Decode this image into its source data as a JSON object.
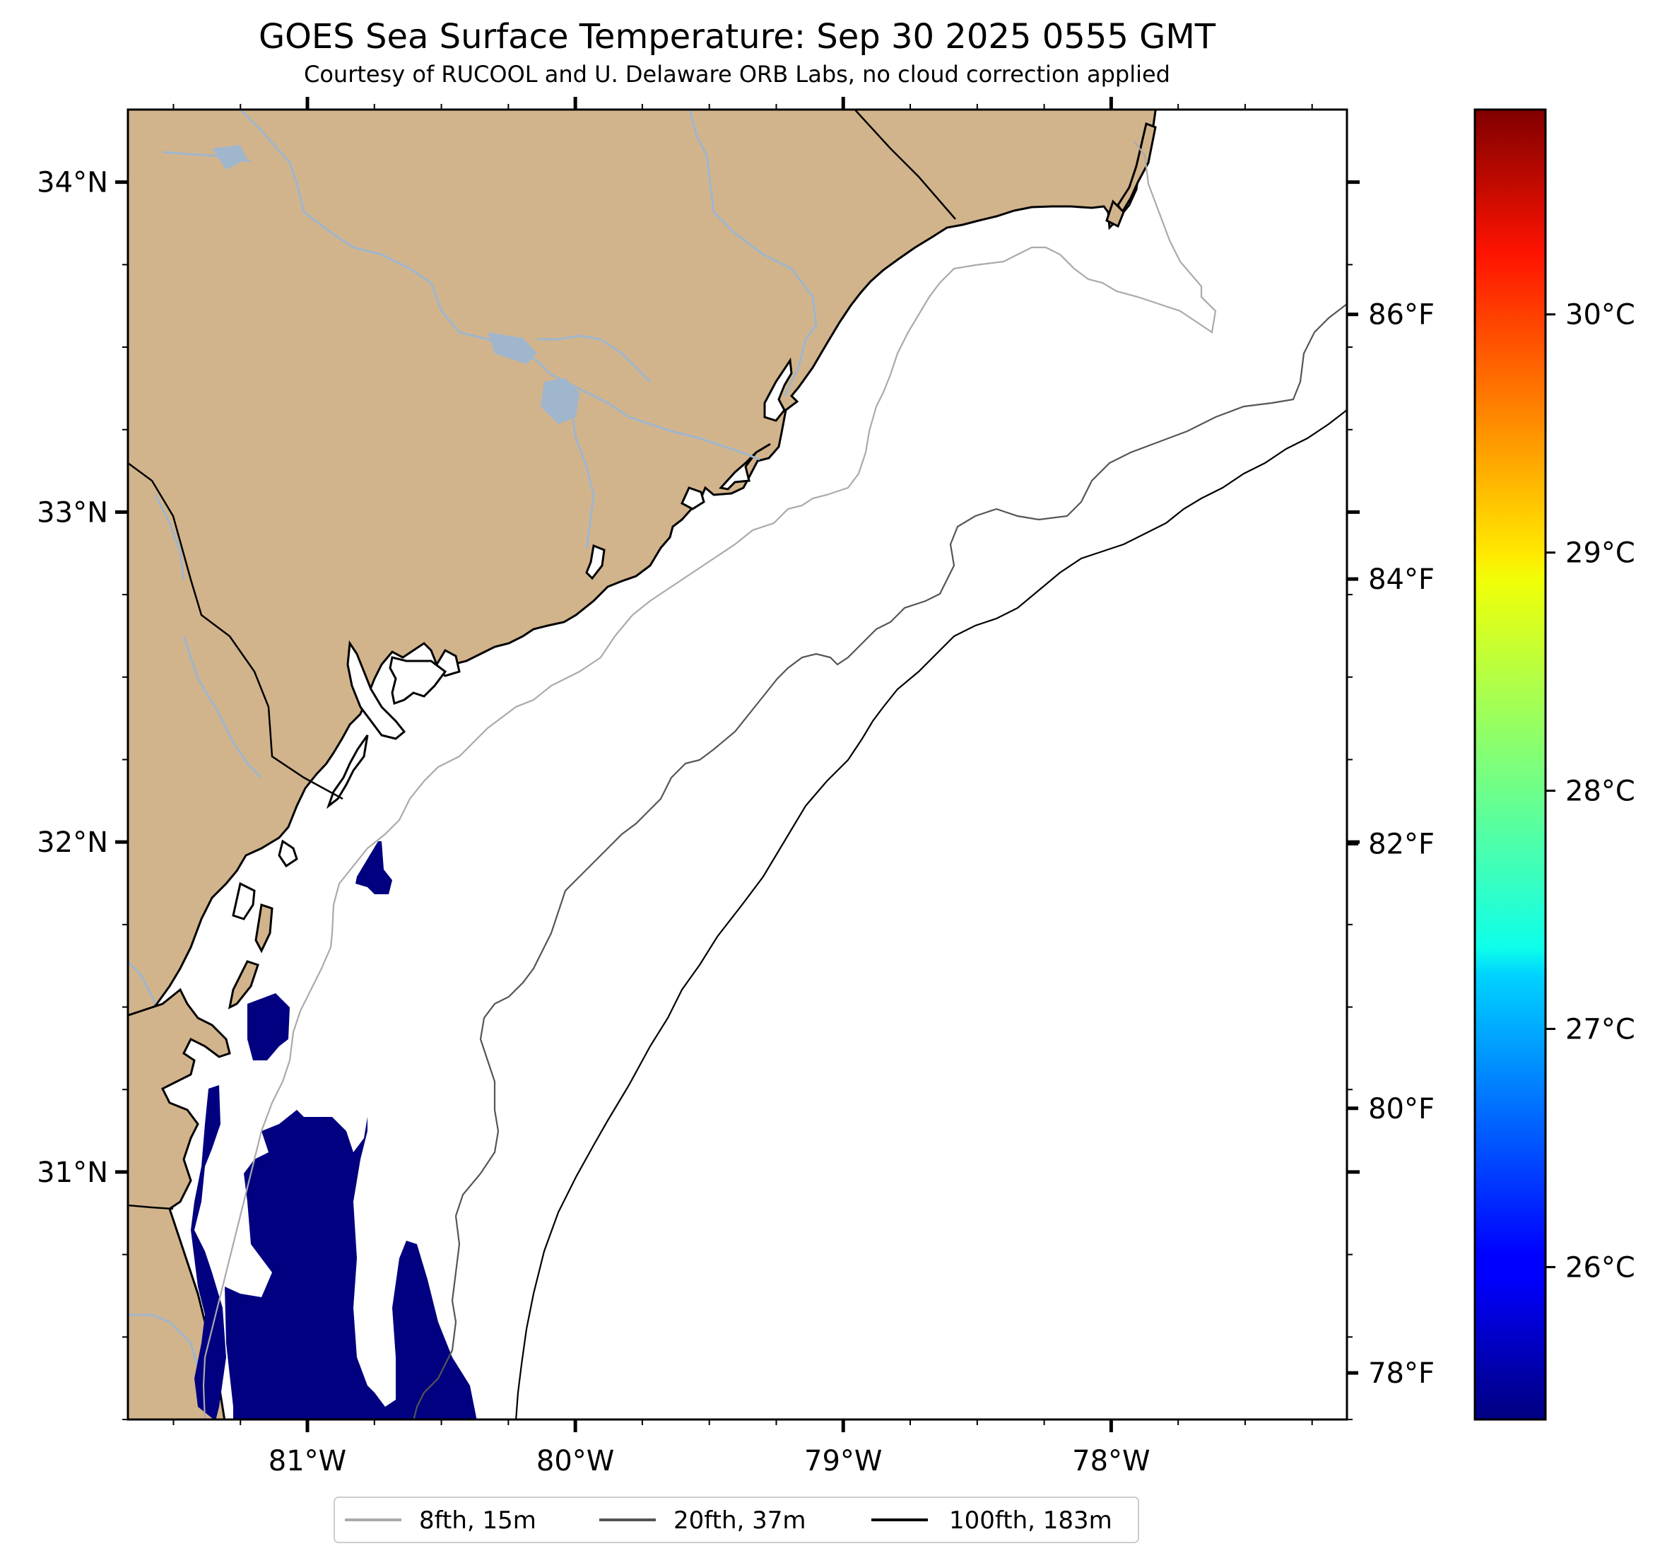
{
  "title": "GOES Sea Surface Temperature: Sep 30 2025 0555 GMT",
  "subtitle": "Courtesy of RUCOOL and U. Delaware ORB Labs, no cloud correction applied",
  "colors": {
    "land": "#d2b48c",
    "ocean": "#ffffff",
    "rivers": "#9fb6cd",
    "coast": "#000000",
    "sst_cold": "#000080",
    "iso_8fth": "#aaaaaa",
    "iso_20fth": "#555555",
    "iso_100fth": "#000000"
  },
  "map": {
    "lon_range": [
      -81.67,
      -77.12
    ],
    "lat_range": [
      30.25,
      34.22
    ],
    "lon_ticks": [
      {
        "value": -81,
        "label": "81°W"
      },
      {
        "value": -80,
        "label": "80°W"
      },
      {
        "value": -79,
        "label": "79°W"
      },
      {
        "value": -78,
        "label": "78°W"
      }
    ],
    "lat_ticks": [
      {
        "value": 34,
        "label": "34°N"
      },
      {
        "value": 33,
        "label": "33°N"
      },
      {
        "value": 32,
        "label": "32°N"
      },
      {
        "value": 31,
        "label": "31°N"
      }
    ]
  },
  "colorbar": {
    "colormap": "jet",
    "celsius_ticks": [
      {
        "value": 26,
        "label": "26°C"
      },
      {
        "value": 27,
        "label": "27°C"
      },
      {
        "value": 28,
        "label": "28°C"
      },
      {
        "value": 29,
        "label": "29°C"
      },
      {
        "value": 30,
        "label": "30°C"
      }
    ],
    "fahrenheit_ticks": [
      {
        "value": 78,
        "label": "78°F"
      },
      {
        "value": 80,
        "label": "80°F"
      },
      {
        "value": 82,
        "label": "82°F"
      },
      {
        "value": 84,
        "label": "84°F"
      },
      {
        "value": 86,
        "label": "86°F"
      }
    ],
    "range_c": [
      25.36,
      30.86
    ]
  },
  "legend": {
    "entries": [
      {
        "label": "8fth, 15m",
        "color": "#aaaaaa"
      },
      {
        "label": "20fth, 37m",
        "color": "#555555"
      },
      {
        "label": "100fth, 183m",
        "color": "#000000"
      }
    ]
  }
}
